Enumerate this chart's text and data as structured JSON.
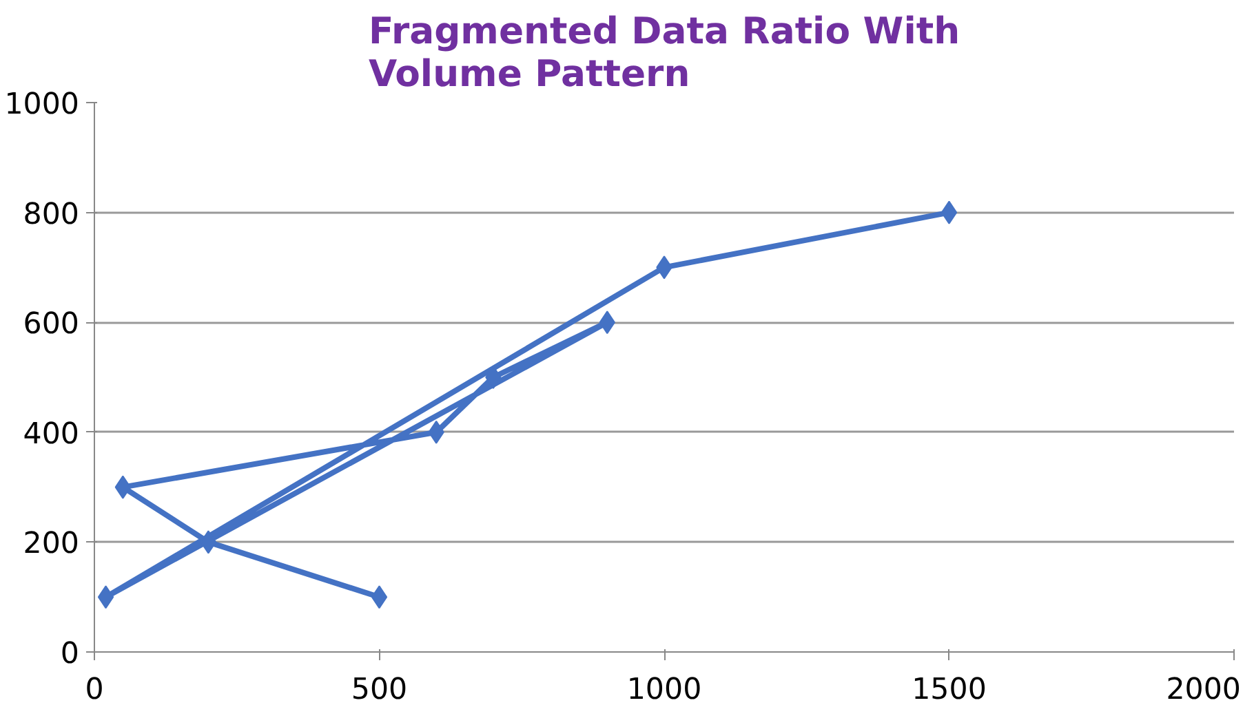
{
  "chart_data": {
    "type": "line",
    "title": "Fragmented Data Ratio With\nVolume Pattern",
    "x": [
      500,
      200,
      50,
      600,
      700,
      900,
      20,
      1000,
      1500
    ],
    "series": [
      {
        "color": "#4472c4",
        "values": [
          100,
          200,
          300,
          400,
          500,
          600,
          100,
          700,
          800
        ]
      }
    ],
    "xlim": [
      0,
      2000
    ],
    "xticks": [
      0,
      500,
      1000,
      1500,
      2000
    ],
    "ylim": [
      0,
      1000
    ],
    "yticks": [
      0,
      200,
      400,
      600,
      800,
      1000
    ],
    "grid": "y",
    "marker": "diamond",
    "line_style": "solid"
  }
}
